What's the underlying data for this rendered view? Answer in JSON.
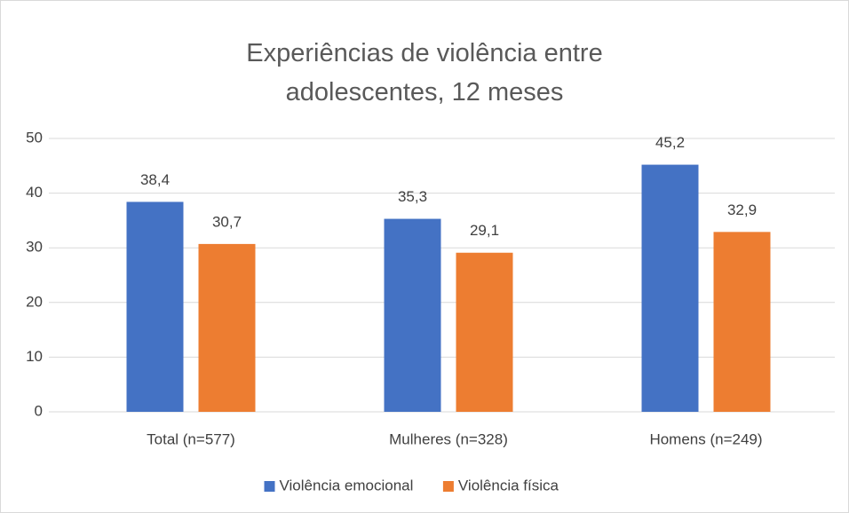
{
  "chart_data": {
    "type": "bar",
    "title": "Experiências de violência entre adolescentes, 12 meses",
    "categories": [
      "Total (n=577)",
      "Mulheres (n=328)",
      "Homens (n=249)"
    ],
    "series": [
      {
        "name": "Violência emocional",
        "color": "#4472c4",
        "values": [
          38.4,
          35.3,
          45.2
        ],
        "value_labels": [
          "38,4",
          "35,3",
          "45,2"
        ]
      },
      {
        "name": "Violência física",
        "color": "#ed7d31",
        "values": [
          30.7,
          29.1,
          32.9
        ],
        "value_labels": [
          "30,7",
          "29,1",
          "32,9"
        ]
      }
    ],
    "ylim": [
      0,
      50
    ],
    "yticks": [
      0,
      10,
      20,
      30,
      40,
      50
    ],
    "grid": true,
    "legend": "bottom"
  }
}
